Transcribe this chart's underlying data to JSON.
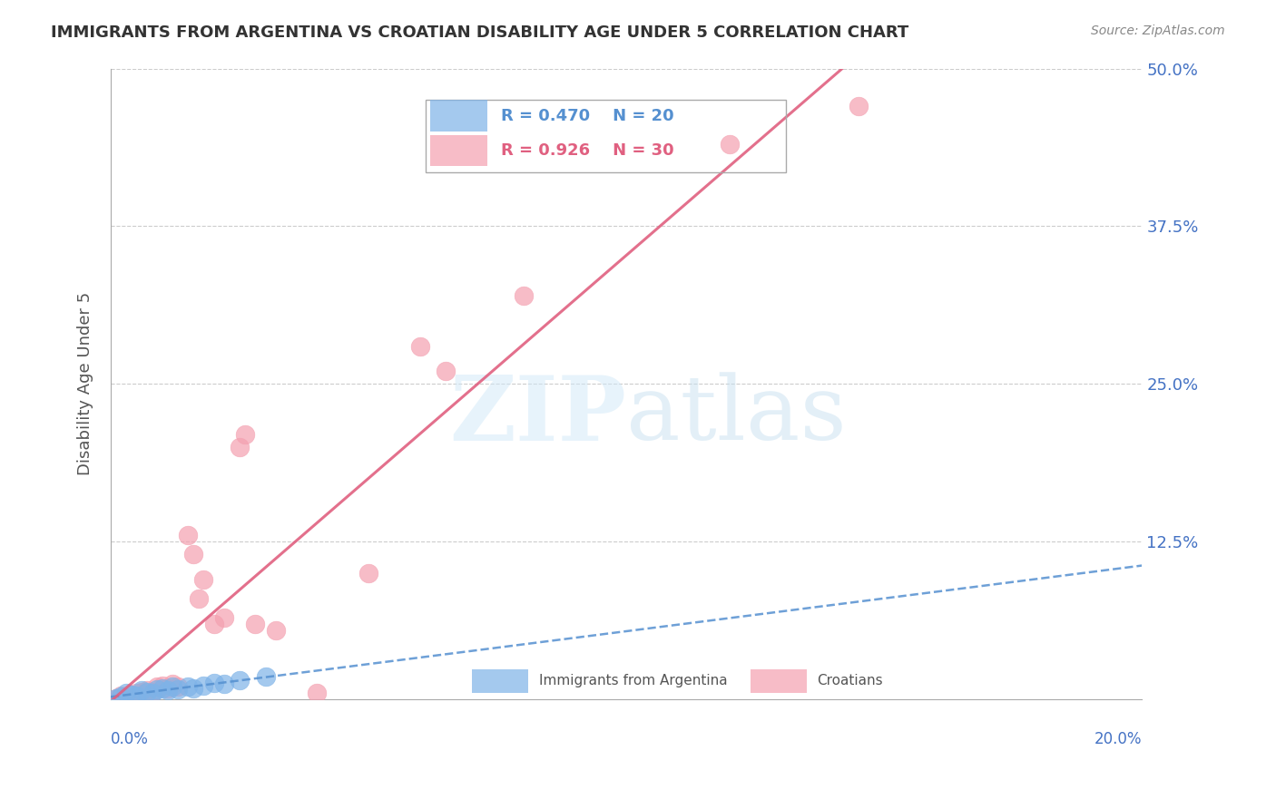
{
  "title": "IMMIGRANTS FROM ARGENTINA VS CROATIAN DISABILITY AGE UNDER 5 CORRELATION CHART",
  "source": "Source: ZipAtlas.com",
  "ylabel": "Disability Age Under 5",
  "x_ticks": [
    0.0,
    0.04,
    0.08,
    0.12,
    0.16,
    0.2
  ],
  "y_ticks": [
    0.0,
    0.125,
    0.25,
    0.375,
    0.5
  ],
  "y_tick_labels": [
    "",
    "12.5%",
    "25.0%",
    "37.5%",
    "50.0%"
  ],
  "xlim": [
    0.0,
    0.2
  ],
  "ylim": [
    0.0,
    0.5
  ],
  "blue_color": "#7EB3E8",
  "pink_color": "#F4A0B0",
  "blue_line_color": "#5590D0",
  "pink_line_color": "#E06080",
  "argentina_points": [
    [
      0.001,
      0.001
    ],
    [
      0.002,
      0.002
    ],
    [
      0.003,
      0.005
    ],
    [
      0.004,
      0.004
    ],
    [
      0.005,
      0.003
    ],
    [
      0.006,
      0.007
    ],
    [
      0.007,
      0.006
    ],
    [
      0.008,
      0.005
    ],
    [
      0.009,
      0.008
    ],
    [
      0.01,
      0.009
    ],
    [
      0.011,
      0.007
    ],
    [
      0.012,
      0.01
    ],
    [
      0.013,
      0.008
    ],
    [
      0.015,
      0.01
    ],
    [
      0.016,
      0.009
    ],
    [
      0.018,
      0.011
    ],
    [
      0.02,
      0.013
    ],
    [
      0.022,
      0.012
    ],
    [
      0.025,
      0.015
    ],
    [
      0.03,
      0.018
    ]
  ],
  "croatian_points": [
    [
      0.001,
      0.001
    ],
    [
      0.002,
      0.003
    ],
    [
      0.003,
      0.002
    ],
    [
      0.004,
      0.004
    ],
    [
      0.005,
      0.005
    ],
    [
      0.006,
      0.006
    ],
    [
      0.007,
      0.007
    ],
    [
      0.008,
      0.006
    ],
    [
      0.009,
      0.01
    ],
    [
      0.01,
      0.011
    ],
    [
      0.011,
      0.009
    ],
    [
      0.012,
      0.012
    ],
    [
      0.013,
      0.01
    ],
    [
      0.015,
      0.13
    ],
    [
      0.016,
      0.115
    ],
    [
      0.017,
      0.08
    ],
    [
      0.018,
      0.095
    ],
    [
      0.02,
      0.06
    ],
    [
      0.022,
      0.065
    ],
    [
      0.025,
      0.2
    ],
    [
      0.026,
      0.21
    ],
    [
      0.028,
      0.06
    ],
    [
      0.032,
      0.055
    ],
    [
      0.04,
      0.005
    ],
    [
      0.05,
      0.1
    ],
    [
      0.06,
      0.28
    ],
    [
      0.065,
      0.26
    ],
    [
      0.08,
      0.32
    ],
    [
      0.12,
      0.44
    ],
    [
      0.145,
      0.47
    ]
  ]
}
